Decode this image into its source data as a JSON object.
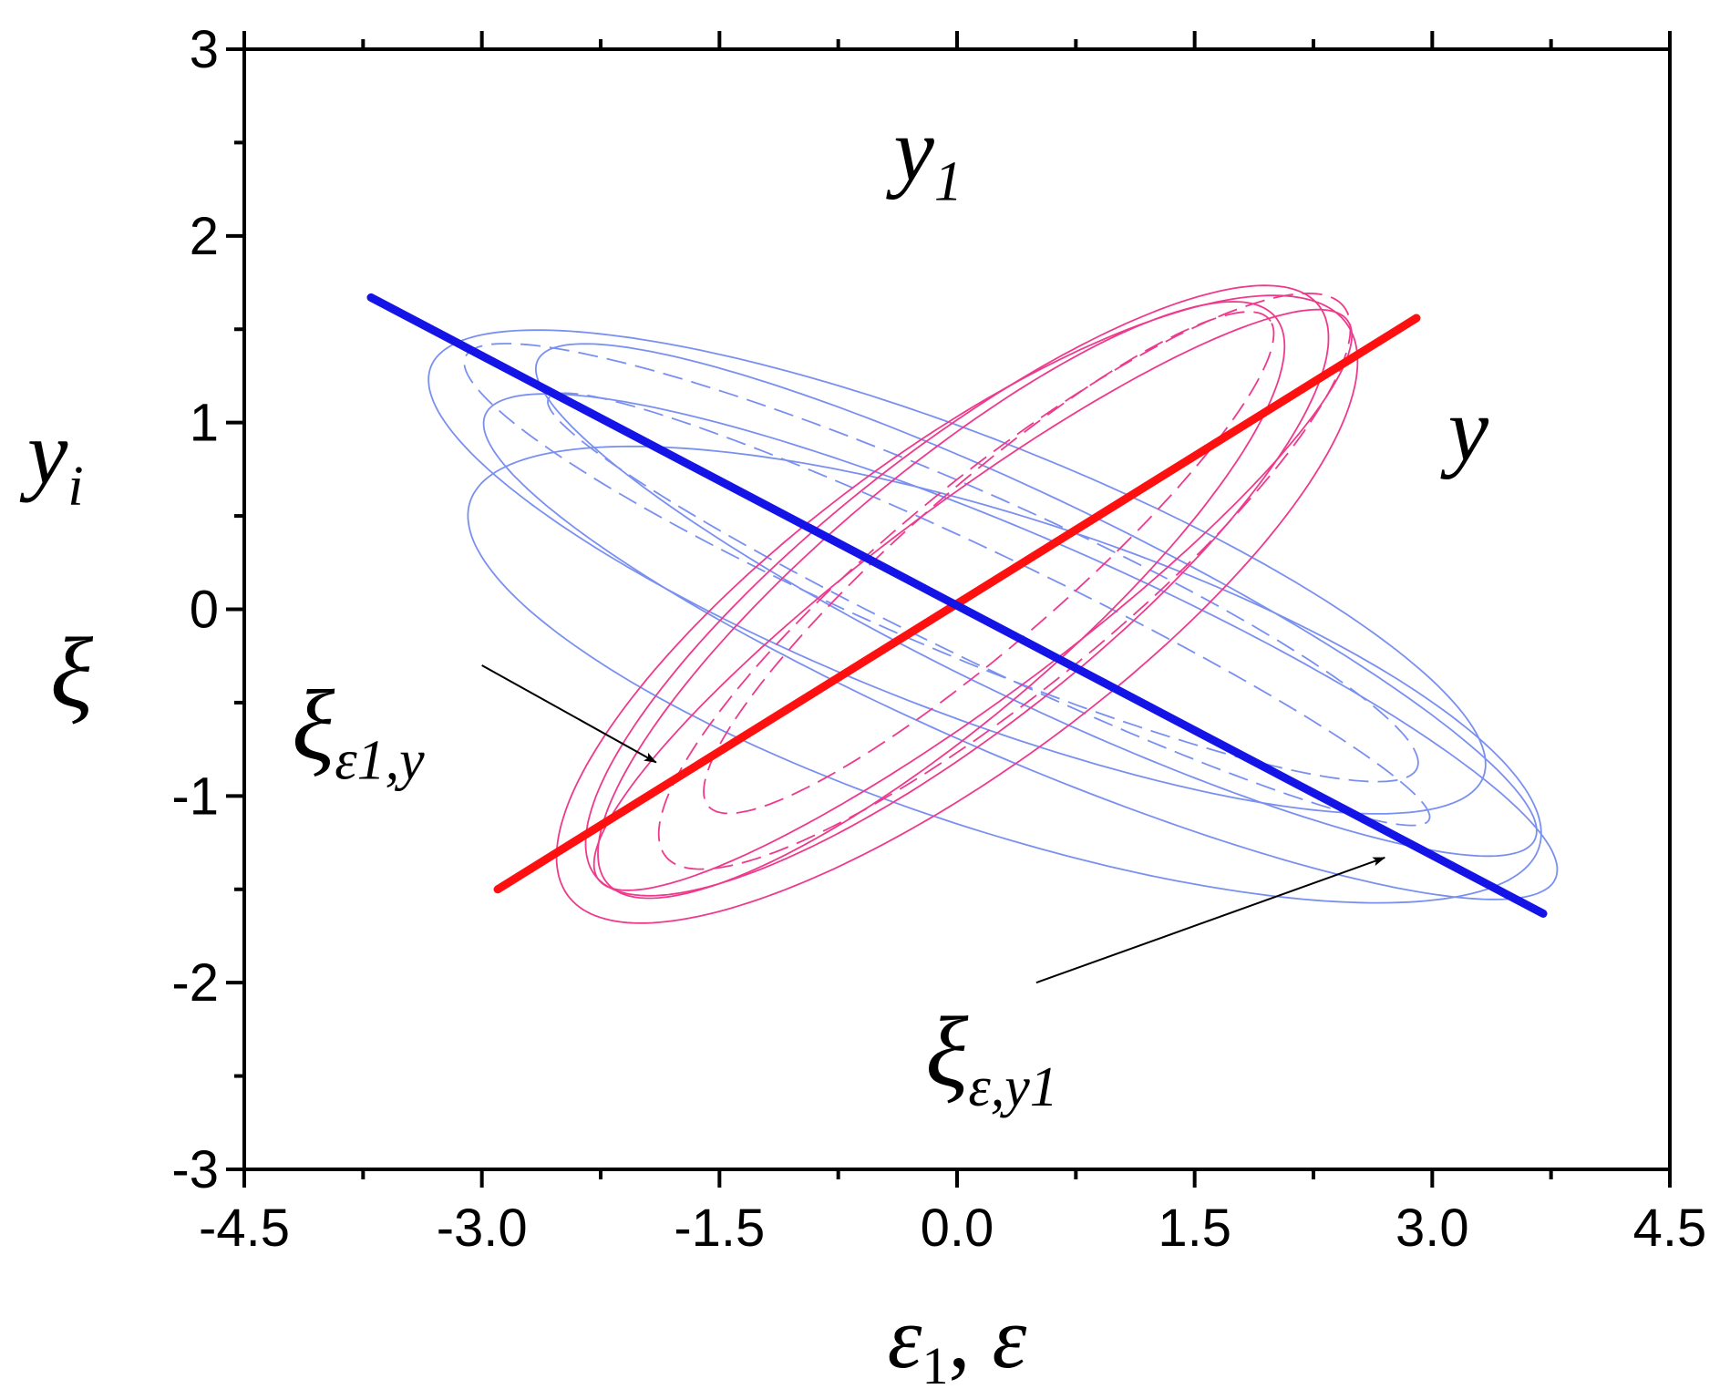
{
  "chart_data": {
    "type": "line",
    "xlim": [
      -4.5,
      4.5
    ],
    "ylim": [
      -3,
      3
    ],
    "x_ticks": [
      "-4.5",
      "-3.0",
      "-1.5",
      "0.0",
      "1.5",
      "3.0",
      "4.5"
    ],
    "y_ticks": [
      "3",
      "2",
      "1",
      "0",
      "-1",
      "-2",
      "-3"
    ],
    "x_minor_step": 0.75,
    "y_minor_step": 0.5,
    "grid": false,
    "xlabel": {
      "base": "ε",
      "sub": "1",
      "sep": ", ",
      "second": "ε"
    },
    "ylabel_top": {
      "base": "y",
      "sub": "i"
    },
    "ylabel_bottom": "ξ",
    "series": [
      {
        "name": "y",
        "color": "#ff1010",
        "line": "thick",
        "points": [
          [
            -2.9,
            -1.5
          ],
          [
            2.9,
            1.56
          ]
        ]
      },
      {
        "name": "y1",
        "color": "#1414e6",
        "line": "thick",
        "points": [
          [
            -3.7,
            1.67
          ],
          [
            3.7,
            -1.63
          ]
        ]
      }
    ],
    "ellipses": [
      {
        "color": "#7a90f0",
        "style": "solid",
        "cx": 0.5,
        "cy": 0.05,
        "a": 3.4,
        "b": 0.55,
        "angle_deg": -22
      },
      {
        "color": "#7a90f0",
        "style": "solid",
        "cx": 0.4,
        "cy": -0.2,
        "a": 3.6,
        "b": 0.6,
        "angle_deg": -20
      },
      {
        "color": "#7a90f0",
        "style": "solid",
        "cx": 0.0,
        "cy": 0.2,
        "a": 3.5,
        "b": 0.75,
        "angle_deg": -18
      },
      {
        "color": "#7a90f0",
        "style": "solid",
        "cx": 0.3,
        "cy": -0.35,
        "a": 3.5,
        "b": 0.85,
        "angle_deg": -15
      },
      {
        "color": "#7a90f0",
        "style": "dashed",
        "cx": -0.1,
        "cy": 0.25,
        "a": 3.2,
        "b": 0.45,
        "angle_deg": -20
      },
      {
        "color": "#7a90f0",
        "style": "dashed",
        "cx": 0.2,
        "cy": 0.0,
        "a": 3.0,
        "b": 0.3,
        "angle_deg": -22
      },
      {
        "color": "#ee3a8c",
        "style": "solid",
        "cx": 0.0,
        "cy": 0.1,
        "a": 2.75,
        "b": 0.78,
        "angle_deg": 33
      },
      {
        "color": "#ee3a8c",
        "style": "solid",
        "cx": 0.0,
        "cy": 0.0,
        "a": 2.9,
        "b": 0.9,
        "angle_deg": 31
      },
      {
        "color": "#ee3a8c",
        "style": "solid",
        "cx": -0.1,
        "cy": 0.05,
        "a": 2.6,
        "b": 0.7,
        "angle_deg": 35
      },
      {
        "color": "#ee3a8c",
        "style": "solid",
        "cx": 0.1,
        "cy": 0.05,
        "a": 2.8,
        "b": 0.55,
        "angle_deg": 32
      },
      {
        "color": "#ee3a8c",
        "style": "dashed",
        "cx": 0.3,
        "cy": 0.15,
        "a": 2.6,
        "b": 0.62,
        "angle_deg": 34
      },
      {
        "color": "#ee3a8c",
        "style": "dashed",
        "cx": 0.2,
        "cy": 0.25,
        "a": 2.2,
        "b": 0.45,
        "angle_deg": 36
      }
    ],
    "annotations": [
      {
        "id": "label-y1",
        "base": "y",
        "sub": "1",
        "at": [
          -0.4,
          2.3
        ]
      },
      {
        "id": "label-y",
        "base": "y",
        "sub": "",
        "at": [
          3.1,
          0.8
        ]
      },
      {
        "id": "xi-eps1-y",
        "base": "ξ",
        "sub": "ε1,y",
        "at": [
          -4.2,
          -0.8
        ],
        "arrow_from": [
          -3.0,
          -0.3
        ],
        "arrow_to": [
          -1.9,
          -0.82
        ]
      },
      {
        "id": "xi-eps-y1",
        "base": "ξ",
        "sub": "ε,y1",
        "at": [
          -0.2,
          -2.55
        ],
        "arrow_from": [
          0.5,
          -2.0
        ],
        "arrow_to": [
          2.7,
          -1.33
        ]
      }
    ]
  }
}
